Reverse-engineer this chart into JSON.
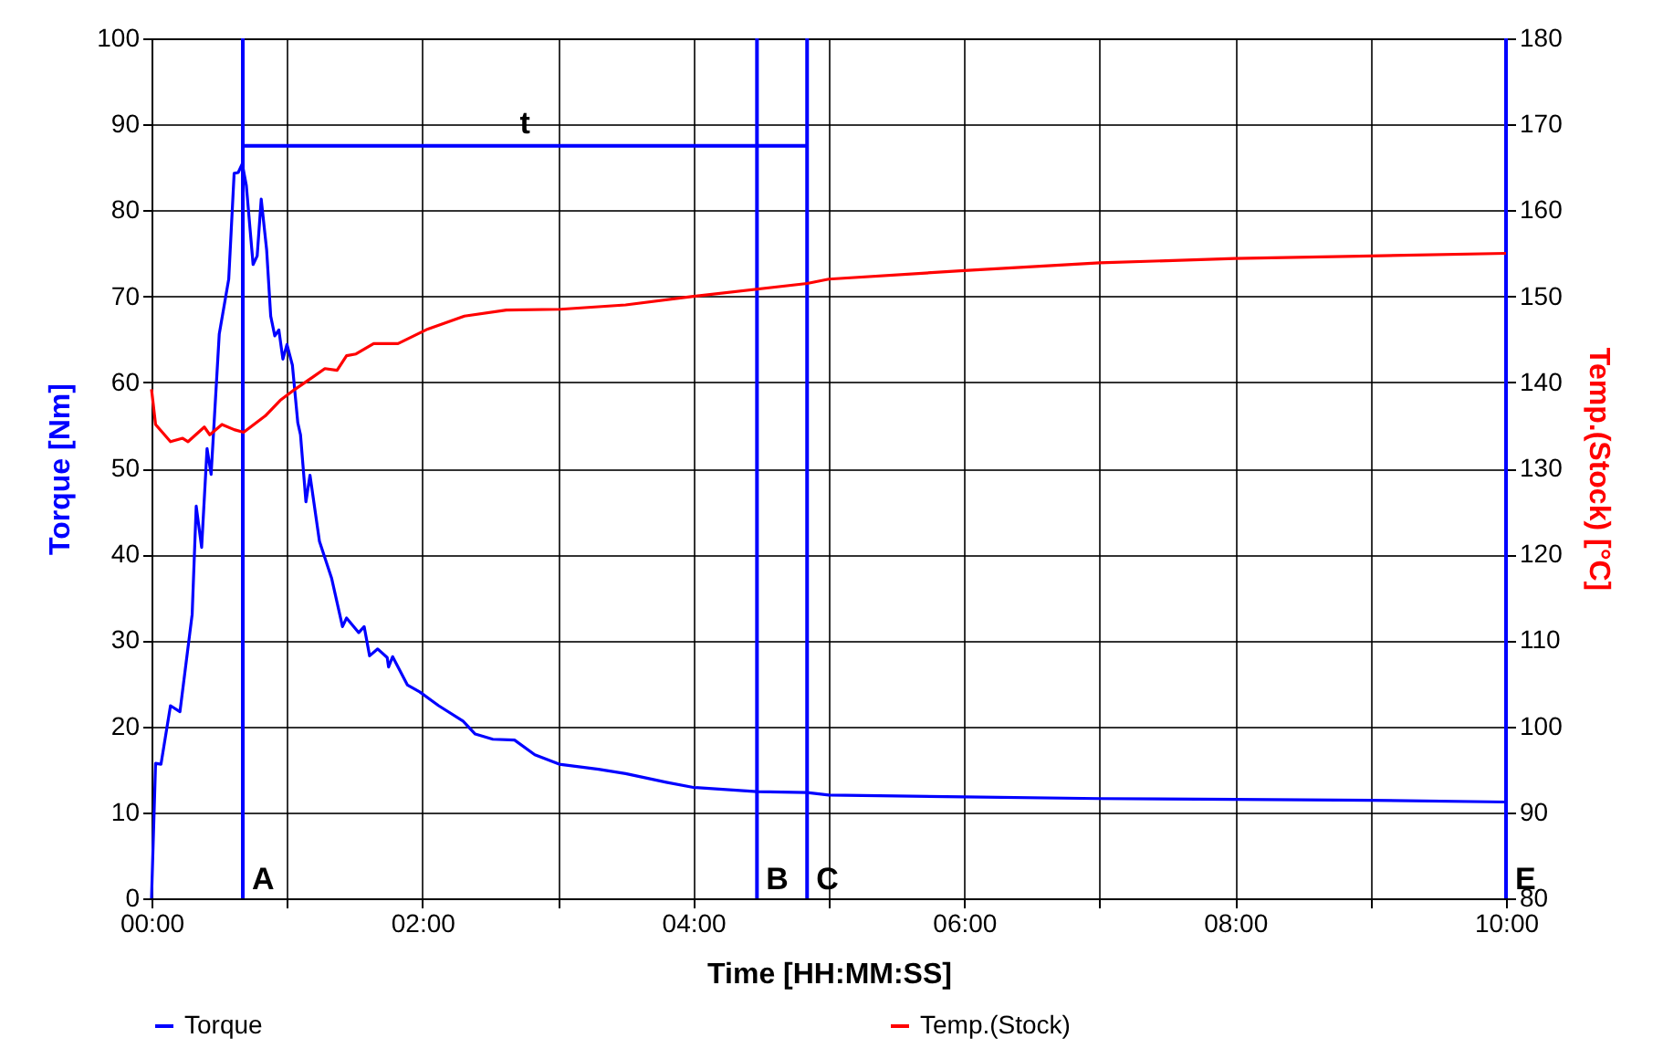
{
  "chart_data": {
    "type": "line",
    "xlabel": "Time [HH:MM:SS]",
    "ylabel": "Torque [Nm]",
    "y2label": "Temp.(Stock) [°C]",
    "xlim": [
      0,
      10
    ],
    "xticks": [
      {
        "value": 0,
        "label": "00:00"
      },
      {
        "value": 1,
        "label": null
      },
      {
        "value": 2,
        "label": "02:00"
      },
      {
        "value": 3,
        "label": null
      },
      {
        "value": 4,
        "label": "04:00"
      },
      {
        "value": 5,
        "label": null
      },
      {
        "value": 6,
        "label": "06:00"
      },
      {
        "value": 7,
        "label": null
      },
      {
        "value": 8,
        "label": "08:00"
      },
      {
        "value": 9,
        "label": null
      },
      {
        "value": 10,
        "label": "10:00"
      }
    ],
    "ylim": [
      0,
      100
    ],
    "yticks": [
      0,
      10,
      20,
      30,
      40,
      50,
      60,
      70,
      80,
      90,
      100
    ],
    "y2lim": [
      80,
      180
    ],
    "y2ticks": [
      80,
      90,
      100,
      110,
      120,
      130,
      140,
      150,
      160,
      170,
      180
    ],
    "grid": true,
    "legend": "bottom",
    "series": [
      {
        "name": "Torque",
        "color": "#0000ff",
        "x": [
          0,
          0.03,
          0.07,
          0.14,
          0.21,
          0.3,
          0.33,
          0.37,
          0.41,
          0.44,
          0.5,
          0.57,
          0.61,
          0.64,
          0.67,
          0.7,
          0.75,
          0.78,
          0.81,
          0.85,
          0.88,
          0.91,
          0.94,
          0.97,
          1.0,
          1.04,
          1.08,
          1.1,
          1.14,
          1.17,
          1.24,
          1.33,
          1.41,
          1.44,
          1.53,
          1.57,
          1.61,
          1.67,
          1.74,
          1.75,
          1.78,
          1.89,
          1.98,
          2.12,
          2.3,
          2.39,
          2.52,
          2.68,
          2.83,
          3.01,
          3.3,
          3.5,
          3.8,
          4.0,
          4.47,
          4.84,
          5.0,
          6.0,
          7.0,
          8.0,
          9.0,
          10.0
        ],
        "values": [
          0,
          15.7,
          15.6,
          22.4,
          21.7,
          33,
          45.6,
          40.8,
          52.3,
          49.3,
          65.6,
          72,
          84.3,
          84.4,
          85.4,
          82.9,
          73.7,
          74.7,
          81.3,
          75.4,
          67.7,
          65.4,
          66.1,
          62.7,
          64.4,
          62,
          55.3,
          53.9,
          46.1,
          49.2,
          41.5,
          37.2,
          31.6,
          32.6,
          30.9,
          31.6,
          28.2,
          29,
          28,
          26.9,
          28.1,
          24.8,
          24,
          22.4,
          20.6,
          19.1,
          18.5,
          18.4,
          16.7,
          15.6,
          15,
          14.5,
          13.5,
          12.9,
          12.4,
          12.3,
          12,
          11.8,
          11.6,
          11.5,
          11.4,
          11.2
        ]
      },
      {
        "name": "Temp.(Stock)",
        "color": "#ff0000",
        "axis": "y2",
        "x": [
          0,
          0.03,
          0.14,
          0.23,
          0.27,
          0.39,
          0.43,
          0.52,
          0.61,
          0.68,
          0.84,
          0.95,
          1.06,
          1.19,
          1.28,
          1.37,
          1.44,
          1.51,
          1.64,
          1.82,
          2.04,
          2.31,
          2.62,
          3.02,
          3.5,
          4.0,
          4.84,
          5.0,
          6.0,
          7.0,
          8.0,
          9.0,
          10.0
        ],
        "values": [
          139.2,
          135.1,
          133.1,
          133.5,
          133.1,
          134.8,
          133.9,
          135.1,
          134.5,
          134.2,
          136.1,
          137.9,
          139.2,
          140.6,
          141.6,
          141.4,
          143.1,
          143.3,
          144.5,
          144.5,
          146.2,
          147.7,
          148.4,
          148.5,
          149,
          150,
          151.5,
          152,
          153,
          153.9,
          154.4,
          154.7,
          155
        ]
      }
    ],
    "ref_lines": [
      {
        "axis": "x",
        "value": 0.674,
        "label": "A",
        "color": "#0000ff"
      },
      {
        "axis": "x",
        "value": 4.47,
        "label": "B",
        "color": "#0000ff"
      },
      {
        "axis": "x",
        "value": 4.84,
        "label": "C",
        "color": "#0000ff"
      },
      {
        "axis": "x",
        "value": 10,
        "label": "E",
        "color": "#0000ff"
      },
      {
        "axis": "y",
        "value": 87.5,
        "label": "t",
        "color": "#0000ff"
      }
    ]
  }
}
